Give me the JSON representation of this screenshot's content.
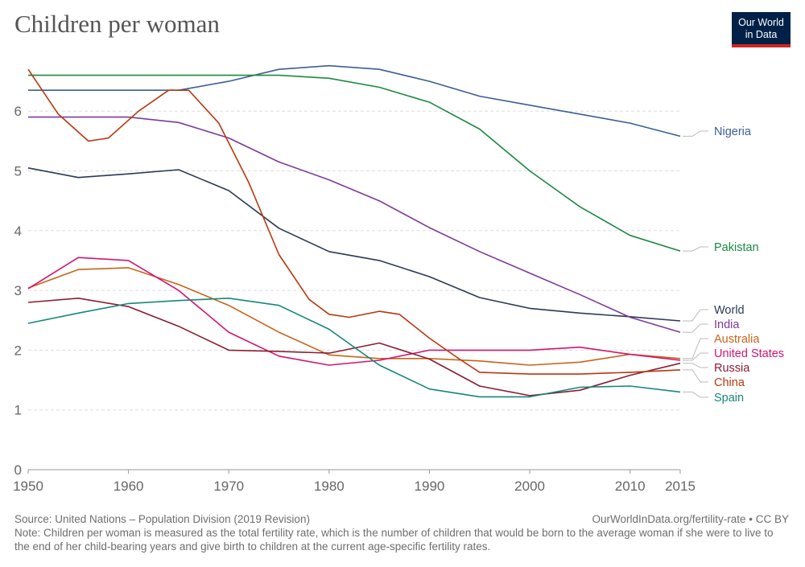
{
  "header": {
    "title": "Children per woman",
    "logo_line1": "Our World",
    "logo_line2": "in Data"
  },
  "footer": {
    "source": "Source: United Nations – Population Division (2019 Revision)",
    "credit": "OurWorldInData.org/fertility-rate • CC BY",
    "note": "Note: Children per woman is measured as the total fertility rate, which is the number of children that would be born to the average woman if she were to live to the end of her child-bearing years and give birth to children at the current age-specific fertility rates."
  },
  "chart_data": {
    "type": "line",
    "title": "Children per woman",
    "xlabel": "",
    "ylabel": "",
    "xlim": [
      1950,
      2015
    ],
    "ylim": [
      0,
      7
    ],
    "x_ticks": [
      1950,
      1960,
      1970,
      1980,
      1990,
      2000,
      2010,
      2015
    ],
    "y_ticks": [
      0,
      1,
      2,
      3,
      4,
      5,
      6
    ],
    "grid": "horizontal dashed",
    "legend": "right (inline labels)",
    "series": [
      {
        "name": "Nigeria",
        "color": "#3c5e96",
        "points": [
          [
            1950,
            6.35
          ],
          [
            1955,
            6.35
          ],
          [
            1960,
            6.35
          ],
          [
            1965,
            6.35
          ],
          [
            1970,
            6.5
          ],
          [
            1975,
            6.7
          ],
          [
            1980,
            6.76
          ],
          [
            1985,
            6.7
          ],
          [
            1990,
            6.5
          ],
          [
            1995,
            6.25
          ],
          [
            2000,
            6.1
          ],
          [
            2005,
            5.95
          ],
          [
            2010,
            5.8
          ],
          [
            2015,
            5.58
          ]
        ]
      },
      {
        "name": "Pakistan",
        "color": "#1a8a3e",
        "points": [
          [
            1950,
            6.6
          ],
          [
            1955,
            6.6
          ],
          [
            1960,
            6.6
          ],
          [
            1965,
            6.6
          ],
          [
            1970,
            6.6
          ],
          [
            1975,
            6.6
          ],
          [
            1980,
            6.55
          ],
          [
            1985,
            6.4
          ],
          [
            1990,
            6.15
          ],
          [
            1995,
            5.7
          ],
          [
            2000,
            5.0
          ],
          [
            2005,
            4.4
          ],
          [
            2010,
            3.92
          ],
          [
            2015,
            3.66
          ]
        ]
      },
      {
        "name": "World",
        "color": "#2b3a55",
        "points": [
          [
            1950,
            5.05
          ],
          [
            1955,
            4.89
          ],
          [
            1960,
            4.95
          ],
          [
            1965,
            5.02
          ],
          [
            1970,
            4.67
          ],
          [
            1975,
            4.04
          ],
          [
            1980,
            3.65
          ],
          [
            1985,
            3.5
          ],
          [
            1990,
            3.23
          ],
          [
            1995,
            2.88
          ],
          [
            2000,
            2.7
          ],
          [
            2005,
            2.62
          ],
          [
            2010,
            2.56
          ],
          [
            2015,
            2.49
          ]
        ]
      },
      {
        "name": "India",
        "color": "#7d3a9c",
        "points": [
          [
            1950,
            5.9
          ],
          [
            1955,
            5.9
          ],
          [
            1960,
            5.9
          ],
          [
            1965,
            5.81
          ],
          [
            1970,
            5.55
          ],
          [
            1975,
            5.15
          ],
          [
            1980,
            4.85
          ],
          [
            1985,
            4.5
          ],
          [
            1990,
            4.05
          ],
          [
            1995,
            3.65
          ],
          [
            2000,
            3.29
          ],
          [
            2005,
            2.93
          ],
          [
            2010,
            2.55
          ],
          [
            2015,
            2.3
          ]
        ]
      },
      {
        "name": "Australia",
        "color": "#c8651b",
        "points": [
          [
            1950,
            3.04
          ],
          [
            1955,
            3.35
          ],
          [
            1960,
            3.38
          ],
          [
            1965,
            3.1
          ],
          [
            1970,
            2.75
          ],
          [
            1975,
            2.3
          ],
          [
            1980,
            1.92
          ],
          [
            1985,
            1.86
          ],
          [
            1990,
            1.86
          ],
          [
            1995,
            1.82
          ],
          [
            2000,
            1.75
          ],
          [
            2005,
            1.8
          ],
          [
            2010,
            1.93
          ],
          [
            2015,
            1.86
          ]
        ]
      },
      {
        "name": "United States",
        "color": "#d3146f",
        "points": [
          [
            1950,
            3.03
          ],
          [
            1955,
            3.55
          ],
          [
            1960,
            3.5
          ],
          [
            1965,
            3.0
          ],
          [
            1970,
            2.3
          ],
          [
            1975,
            1.9
          ],
          [
            1980,
            1.75
          ],
          [
            1985,
            1.83
          ],
          [
            1990,
            2.0
          ],
          [
            1995,
            2.0
          ],
          [
            2000,
            2.0
          ],
          [
            2005,
            2.05
          ],
          [
            2010,
            1.93
          ],
          [
            2015,
            1.83
          ]
        ]
      },
      {
        "name": "Russia",
        "color": "#8a1e32",
        "points": [
          [
            1950,
            2.8
          ],
          [
            1955,
            2.87
          ],
          [
            1960,
            2.73
          ],
          [
            1965,
            2.4
          ],
          [
            1970,
            2.0
          ],
          [
            1975,
            1.98
          ],
          [
            1980,
            1.95
          ],
          [
            1985,
            2.12
          ],
          [
            1990,
            1.85
          ],
          [
            1995,
            1.4
          ],
          [
            2000,
            1.24
          ],
          [
            2005,
            1.33
          ],
          [
            2010,
            1.58
          ],
          [
            2015,
            1.78
          ]
        ]
      },
      {
        "name": "China",
        "color": "#b8380f",
        "points": [
          [
            1950,
            6.7
          ],
          [
            1953,
            5.95
          ],
          [
            1956,
            5.5
          ],
          [
            1958,
            5.55
          ],
          [
            1961,
            6.0
          ],
          [
            1964,
            6.35
          ],
          [
            1966,
            6.35
          ],
          [
            1969,
            5.8
          ],
          [
            1972,
            4.8
          ],
          [
            1975,
            3.6
          ],
          [
            1978,
            2.85
          ],
          [
            1980,
            2.6
          ],
          [
            1982,
            2.55
          ],
          [
            1985,
            2.65
          ],
          [
            1987,
            2.6
          ],
          [
            1990,
            2.2
          ],
          [
            1993,
            1.85
          ],
          [
            1995,
            1.63
          ],
          [
            2000,
            1.6
          ],
          [
            2005,
            1.6
          ],
          [
            2010,
            1.63
          ],
          [
            2015,
            1.67
          ]
        ]
      },
      {
        "name": "Spain",
        "color": "#16877c",
        "points": [
          [
            1950,
            2.45
          ],
          [
            1955,
            2.62
          ],
          [
            1960,
            2.78
          ],
          [
            1965,
            2.83
          ],
          [
            1970,
            2.87
          ],
          [
            1975,
            2.75
          ],
          [
            1980,
            2.35
          ],
          [
            1985,
            1.75
          ],
          [
            1990,
            1.35
          ],
          [
            1995,
            1.22
          ],
          [
            2000,
            1.22
          ],
          [
            2005,
            1.38
          ],
          [
            2010,
            1.4
          ],
          [
            2015,
            1.3
          ]
        ]
      }
    ]
  }
}
